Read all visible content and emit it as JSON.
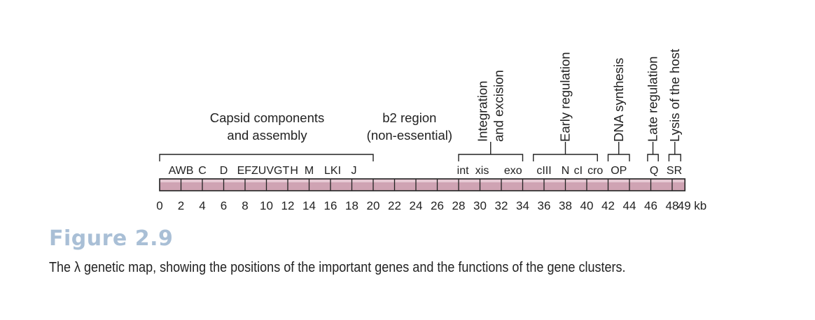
{
  "map": {
    "unit": "kb",
    "max_kb": 49,
    "ticks": [
      0,
      2,
      4,
      6,
      8,
      10,
      12,
      14,
      16,
      18,
      20,
      22,
      24,
      26,
      28,
      30,
      32,
      34,
      36,
      38,
      40,
      42,
      44,
      46,
      48,
      49
    ],
    "genes": [
      {
        "label": "AWB",
        "kb": 2
      },
      {
        "label": "C",
        "kb": 4
      },
      {
        "label": "D",
        "kb": 6
      },
      {
        "label": "EFZUVGT",
        "kb": 9.7
      },
      {
        "label": "H",
        "kb": 12.6
      },
      {
        "label": "M",
        "kb": 14
      },
      {
        "label": "LKI",
        "kb": 16.2
      },
      {
        "label": "J",
        "kb": 18.2
      },
      {
        "label": "int",
        "kb": 28.4
      },
      {
        "label": "xis",
        "kb": 30.2
      },
      {
        "label": "exo",
        "kb": 33.1
      },
      {
        "label": "cIII",
        "kb": 36
      },
      {
        "label": "N",
        "kb": 38
      },
      {
        "label": "cI",
        "kb": 39.2
      },
      {
        "label": "cro",
        "kb": 40.8
      },
      {
        "label": "OP",
        "kb": 43
      },
      {
        "label": "Q",
        "kb": 46.3
      },
      {
        "label": "SR",
        "kb": 48.2
      }
    ],
    "regions": [
      {
        "lines": [
          "Capsid components",
          "and assembly"
        ],
        "start_kb": 0,
        "end_kb": 20,
        "orientation": "horizontal"
      },
      {
        "lines": [
          "Integration",
          "and excision"
        ],
        "start_kb": 28,
        "end_kb": 34,
        "orientation": "vertical"
      },
      {
        "lines": [
          "Early regulation"
        ],
        "start_kb": 35,
        "end_kb": 41,
        "orientation": "vertical"
      },
      {
        "lines": [
          "DNA synthesis"
        ],
        "start_kb": 42,
        "end_kb": 44,
        "orientation": "vertical"
      },
      {
        "lines": [
          "Late regulation"
        ],
        "start_kb": 45.7,
        "end_kb": 46.7,
        "orientation": "vertical"
      },
      {
        "lines": [
          "Lysis of the host"
        ],
        "start_kb": 47.7,
        "end_kb": 48.8,
        "orientation": "vertical"
      }
    ],
    "b2_region": {
      "lines": [
        "b2 region",
        "(non-essential)"
      ],
      "center_kb": 23.4
    }
  },
  "figure": {
    "label": "Figure 2.9",
    "caption": "The λ genetic map, showing the positions of the important genes and the functions of the gene clusters."
  },
  "colors": {
    "bar_fill": "#cfa3b3",
    "bar_stroke": "#222222",
    "figure_label": "#a9bfd6"
  }
}
